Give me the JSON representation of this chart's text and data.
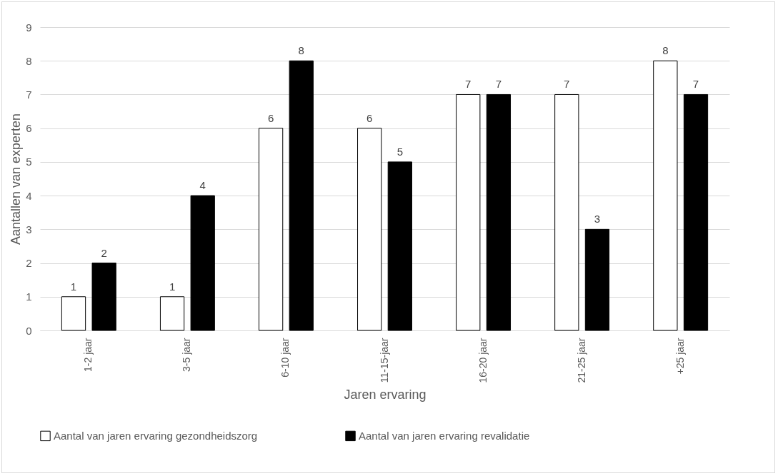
{
  "chart_data": {
    "type": "bar",
    "xlabel": "Jaren ervaring",
    "ylabel": "Aantallen van experten",
    "categories": [
      "1-2 jaar",
      "3-5 jaar",
      "6-10 jaar",
      "11-15-jaar",
      "16-20 jaar",
      "21-25 jaar",
      "+25 jaar"
    ],
    "series": [
      {
        "name": "Aantal van jaren ervaring gezondheidszorg",
        "color": "#ffffff",
        "values": [
          1,
          1,
          6,
          6,
          7,
          7,
          8
        ]
      },
      {
        "name": "Aantal van jaren ervaring revalidatie",
        "color": "#000000",
        "values": [
          2,
          4,
          8,
          5,
          7,
          3,
          7
        ]
      }
    ],
    "ylim": [
      0,
      9
    ],
    "yticks": [
      0,
      1,
      2,
      3,
      4,
      5,
      6,
      7,
      8,
      9
    ],
    "grid": "y",
    "legend": "bottom",
    "data_labels": true
  }
}
